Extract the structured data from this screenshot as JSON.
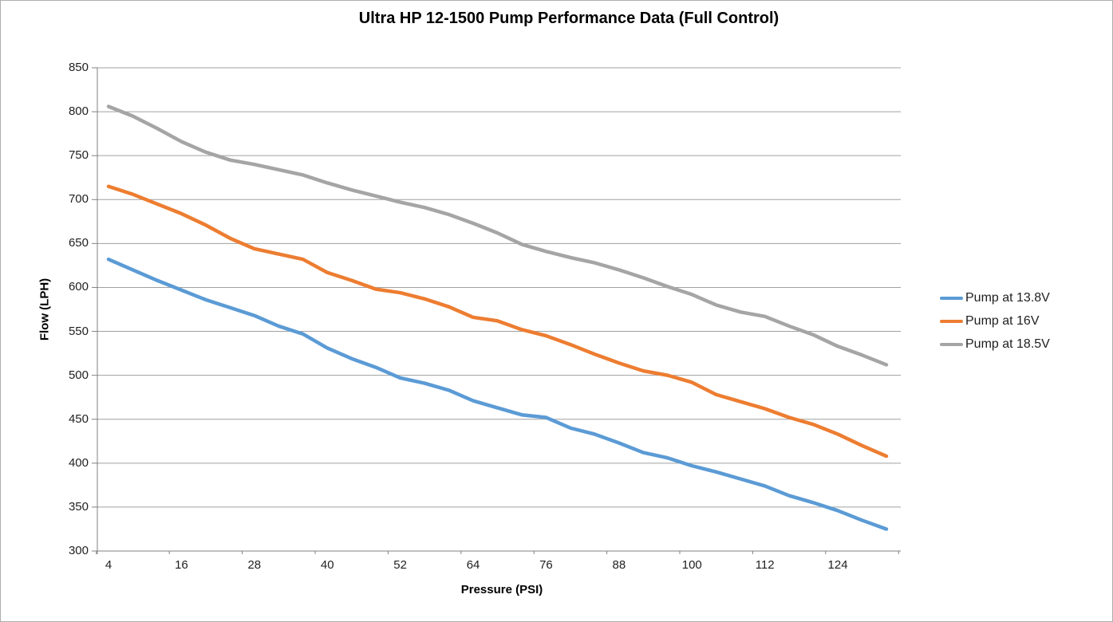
{
  "title": "Ultra HP 12-1500 Pump Performance Data (Full Control)",
  "chart_data": {
    "type": "line",
    "title": "Ultra HP 12-1500 Pump Performance Data (Full Control)",
    "xlabel": "Pressure (PSI)",
    "ylabel": "Flow (LPH)",
    "ylim": [
      300,
      850
    ],
    "y_tick_step": 50,
    "x_tick_labels": [
      "4",
      "16",
      "28",
      "40",
      "52",
      "64",
      "76",
      "88",
      "100",
      "112",
      "124"
    ],
    "grid": true,
    "legend_position": "right",
    "x": [
      4,
      8,
      12,
      16,
      20,
      24,
      28,
      32,
      36,
      40,
      44,
      48,
      52,
      56,
      60,
      64,
      68,
      72,
      76,
      80,
      84,
      88,
      92,
      96,
      100,
      104,
      108,
      112,
      116,
      120,
      124,
      128,
      132
    ],
    "series": [
      {
        "name": "Pump at 13.8V",
        "color": "#5B9BD5",
        "values": [
          632,
          620,
          608,
          597,
          586,
          577,
          568,
          556,
          547,
          531,
          519,
          509,
          497,
          491,
          483,
          471,
          463,
          455,
          452,
          440,
          433,
          423,
          412,
          406,
          397,
          390,
          382,
          374,
          363,
          355,
          346,
          335,
          325
        ]
      },
      {
        "name": "Pump at 16V",
        "color": "#ED7D31",
        "values": [
          715,
          706,
          695,
          684,
          671,
          656,
          644,
          638,
          632,
          617,
          608,
          598,
          594,
          587,
          578,
          566,
          562,
          552,
          545,
          535,
          524,
          514,
          505,
          500,
          492,
          478,
          470,
          462,
          452,
          444,
          433,
          420,
          408
        ]
      },
      {
        "name": "Pump at 18.5V",
        "color": "#A5A5A5",
        "values": [
          806,
          795,
          781,
          766,
          754,
          745,
          740,
          734,
          728,
          719,
          711,
          704,
          697,
          691,
          683,
          673,
          662,
          649,
          641,
          634,
          628,
          620,
          611,
          601,
          592,
          580,
          572,
          567,
          556,
          546,
          533,
          523,
          512
        ]
      }
    ]
  },
  "legend": {
    "items": [
      {
        "label": "Pump at 13.8V",
        "color": "#5B9BD5"
      },
      {
        "label": "Pump at 16V",
        "color": "#ED7D31"
      },
      {
        "label": "Pump at 18.5V",
        "color": "#A5A5A5"
      }
    ]
  },
  "colors": {
    "background": "#ffffff",
    "gridline": "#a0a0a0",
    "axis": "#808080",
    "text": "#1f1f1f",
    "frame_border": "#adadad"
  }
}
